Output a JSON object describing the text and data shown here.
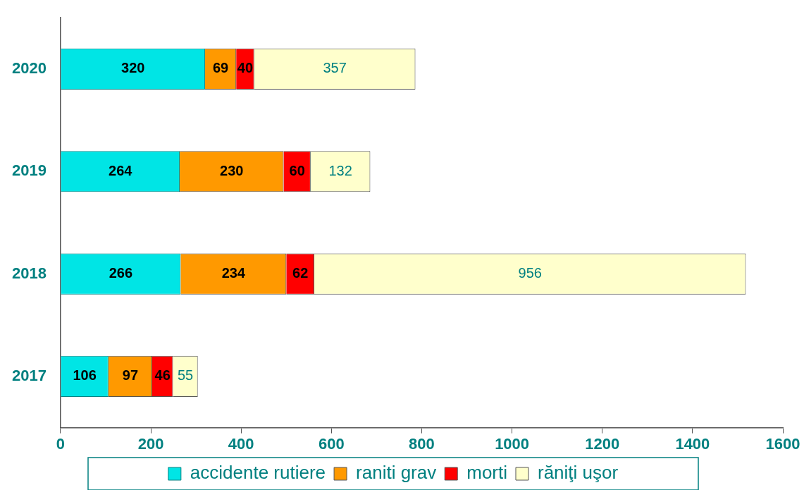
{
  "chart_data": {
    "type": "bar",
    "orientation": "horizontal",
    "stacked": true,
    "categories": [
      "2020",
      "2019",
      "2018",
      "2017"
    ],
    "series": [
      {
        "name": "accidente rutiere",
        "color": "#00e5e5",
        "values": [
          320,
          264,
          266,
          106
        ]
      },
      {
        "name": "raniti grav",
        "color": "#ff9900",
        "values": [
          69,
          230,
          234,
          97
        ]
      },
      {
        "name": "morti",
        "color": "#ff0000",
        "values": [
          40,
          60,
          62,
          46
        ]
      },
      {
        "name": "răniţi uşor",
        "color": "#ffffcc",
        "values": [
          357,
          132,
          956,
          55
        ]
      }
    ],
    "xlim": [
      0,
      1600
    ],
    "xticks": [
      0,
      200,
      400,
      600,
      800,
      1000,
      1200,
      1400,
      1600
    ],
    "data_labels": true,
    "legend": "bottom"
  }
}
